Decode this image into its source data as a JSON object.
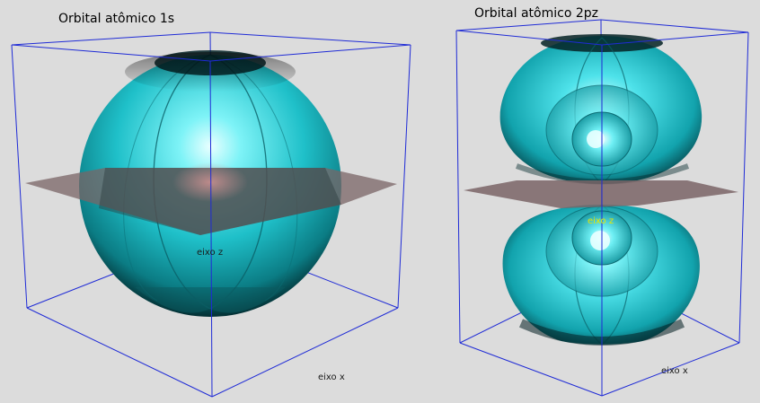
{
  "panels": [
    {
      "title": "Orbital atômico 1s",
      "axis_z_label": "eixo z",
      "axis_x_label": "eixo x",
      "axis_z_color": "#1a1a1a",
      "axis_x_color": "#1a1a1a"
    },
    {
      "title": "Orbital atômico 2pz",
      "axis_z_label": "eixo z",
      "axis_x_label": "eixo x",
      "axis_z_color": "#e6e600",
      "axis_x_color": "#1a1a1a"
    }
  ],
  "colors": {
    "background": "#dcdcdc",
    "box_edges": "#1f2bd6",
    "orbital": "#23c4cc",
    "orbital_highlight": "#d8ffff",
    "orbital_shadow": "#022a2e",
    "plane": "#7a6466"
  }
}
